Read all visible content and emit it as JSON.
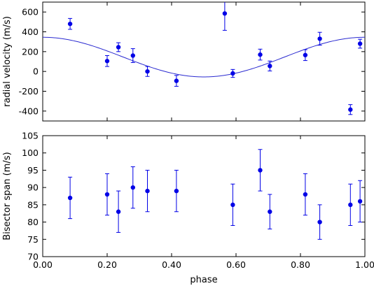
{
  "chart_data": [
    {
      "type": "scatter",
      "xlabel": "",
      "ylabel": "radial velocity (m/s)",
      "xlim": [
        0,
        1
      ],
      "ylim": [
        -500,
        700
      ],
      "yticks": [
        -400,
        -200,
        0,
        200,
        400,
        600
      ],
      "xticks_labeled": false,
      "grid": false,
      "marker_color": "#0000e6",
      "model_curve": {
        "color": "#2a2ad0",
        "description": "sinusoidal fit",
        "offset": 145,
        "amplitude": 200,
        "max_phase": 0
      },
      "series": [
        {
          "x": [
            0.085,
            0.2,
            0.235,
            0.28,
            0.325,
            0.415,
            0.565,
            0.59,
            0.675,
            0.705,
            0.815,
            0.86,
            0.955,
            0.985
          ],
          "y": [
            480,
            105,
            245,
            160,
            0,
            -95,
            585,
            -20,
            170,
            55,
            165,
            330,
            -385,
            280
          ],
          "err": [
            55,
            55,
            45,
            70,
            50,
            55,
            170,
            40,
            55,
            50,
            55,
            65,
            50,
            45
          ]
        }
      ]
    },
    {
      "type": "scatter",
      "xlabel": "phase",
      "ylabel": "Bisector span (m/s)",
      "xlim": [
        0,
        1
      ],
      "ylim": [
        70,
        105
      ],
      "yticks": [
        70,
        75,
        80,
        85,
        90,
        95,
        100,
        105
      ],
      "xticks": [
        0,
        0.2,
        0.4,
        0.6,
        0.8,
        1.0
      ],
      "xtick_labels": [
        "0.00",
        "0.20",
        "0.40",
        "0.60",
        "0.80",
        "1.00"
      ],
      "grid": false,
      "marker_color": "#0000e6",
      "series": [
        {
          "x": [
            0.085,
            0.2,
            0.235,
            0.28,
            0.325,
            0.415,
            0.59,
            0.675,
            0.705,
            0.815,
            0.86,
            0.955,
            0.985
          ],
          "y": [
            87,
            88,
            83,
            90,
            89,
            89,
            85,
            95,
            83,
            88,
            80,
            85,
            86
          ],
          "err": [
            6,
            6,
            6,
            6,
            6,
            6,
            6,
            6,
            5,
            6,
            5,
            6,
            6
          ]
        }
      ]
    }
  ]
}
